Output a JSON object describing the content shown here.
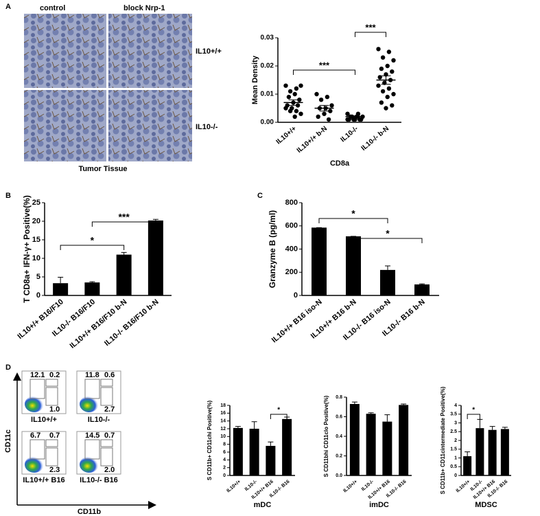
{
  "panel_labels": [
    "A",
    "B",
    "C",
    "D"
  ],
  "micrographs": {
    "columns": [
      "control",
      "block Nrp-1"
    ],
    "rows": [
      "IL10+/+",
      "IL10-/-"
    ],
    "caption": "Tumor Tissue"
  },
  "flow": {
    "y_axis": "CD11c",
    "x_axis": "CD11b",
    "plots": [
      {
        "label": "IL10+/+",
        "quadrants": [
          "12.1",
          "0.2",
          "1.0"
        ]
      },
      {
        "label": "IL10-/-",
        "quadrants": [
          "11.8",
          "0.6",
          "2.7"
        ]
      },
      {
        "label": "IL10+/+ B16",
        "quadrants": [
          "6.7",
          "0.7",
          "2.3"
        ]
      },
      {
        "label": "IL10-/- B16",
        "quadrants": [
          "14.5",
          "0.7",
          "2.0"
        ]
      }
    ]
  },
  "chart_data": [
    {
      "type": "dot",
      "y_label": "Mean Density",
      "x_label": "CD8a",
      "color": "#000000",
      "categories": [
        "IL10+/+",
        "IL10+/+ b-N",
        "IL10-/-",
        "IL10-/- b-N"
      ],
      "points": [
        [
          0.013,
          0.012,
          0.011,
          0.013,
          0.01,
          0.009,
          0.008,
          0.007,
          0.006,
          0.006,
          0.005,
          0.005,
          0.004,
          0.004,
          0.003,
          0.002
        ],
        [
          0.01,
          0.009,
          0.008,
          0.006,
          0.005,
          0.005,
          0.004,
          0.003,
          0.002,
          0.001
        ],
        [
          0.003,
          0.003,
          0.002,
          0.002,
          0.002,
          0.002,
          0.001,
          0.001,
          0.001,
          0.001,
          0.001,
          0.001
        ],
        [
          0.026,
          0.025,
          0.023,
          0.022,
          0.02,
          0.019,
          0.018,
          0.017,
          0.016,
          0.015,
          0.014,
          0.013,
          0.012,
          0.011,
          0.01,
          0.009,
          0.007,
          0.006,
          0.005
        ]
      ],
      "means": [
        0.007,
        0.005,
        0.002,
        0.015
      ],
      "errors": [
        0.001,
        0.001,
        0.0003,
        0.0015
      ],
      "ylim": [
        0,
        0.03
      ],
      "yticks": [
        {
          "value": 0,
          "label": "0.00"
        },
        {
          "value": 0.01,
          "label": "0.01"
        },
        {
          "value": 0.02,
          "label": "0.02"
        },
        {
          "value": 0.03,
          "label": "0.03"
        }
      ],
      "annotations": [
        "***",
        "***"
      ]
    },
    {
      "type": "bar",
      "y_label": "T CD8a+ IFN-γ+ Positive(%)",
      "color": "#000000",
      "categories": [
        "IL10+/+ B16/F10",
        "IL10-/- B16/F10",
        "IL10+/+ B16/F10 b-N",
        "IL10-/- B16/F10 b-N"
      ],
      "values": [
        3.3,
        3.5,
        11,
        20.2
      ],
      "errors": [
        1.6,
        0.2,
        0.6,
        0.3
      ],
      "ylim": [
        0,
        25
      ],
      "yticks": [
        0,
        5,
        10,
        15,
        20,
        25
      ],
      "annotations": [
        "*",
        "***"
      ]
    },
    {
      "type": "bar",
      "y_label": "Granzyme B (pg/ml)",
      "color": "#000000",
      "categories": [
        "IL10+/+ B16 iso-N",
        "IL10+/+ B16 b-N",
        "IL10-/- B16 iso-N",
        "IL10-/- B16 b-N"
      ],
      "values": [
        585,
        510,
        220,
        95
      ],
      "errors": [
        0,
        0,
        35,
        5
      ],
      "ylim": [
        0,
        800
      ],
      "yticks": [
        0,
        200,
        400,
        600,
        800
      ],
      "annotations": [
        "*",
        "*"
      ]
    },
    {
      "type": "bar",
      "y_label": "S CD11b+ CD11chi Positive(%)",
      "x_label": "mDC",
      "color": "#000000",
      "categories": [
        "IL10+/+",
        "IL10-/-",
        "IL10+/+ B16",
        "IL10-/- B16"
      ],
      "values": [
        12.2,
        12,
        7.6,
        14.5
      ],
      "errors": [
        0.4,
        1.8,
        1,
        0.5
      ],
      "ylim": [
        0,
        18
      ],
      "yticks": [
        0,
        2,
        4,
        6,
        8,
        10,
        12,
        14,
        16,
        18
      ],
      "annotations": [
        "*"
      ]
    },
    {
      "type": "bar",
      "y_label": "S CD11bhi CD11clo Positive(%)",
      "x_label": "imDC",
      "color": "#000000",
      "categories": [
        "IL10+/+",
        "IL10-/-",
        "IL10+/+ B16",
        "IL10-/- B16"
      ],
      "values": [
        0.73,
        0.63,
        0.55,
        0.72
      ],
      "errors": [
        0.02,
        0.01,
        0.07,
        0.01
      ],
      "ylim": [
        0,
        0.8
      ],
      "yticks": [
        {
          "value": 0,
          "label": "0.0"
        },
        0.2,
        0.4,
        0.6,
        0.8
      ],
      "annotations": []
    },
    {
      "type": "bar",
      "y_label": "S CD11b+ CD11cintermediate Positive(%)",
      "x_label": "MDSC",
      "color": "#000000",
      "categories": [
        "IL10+/+",
        "IL10-/-",
        "IL10+/+ B16",
        "IL10-/- B16"
      ],
      "values": [
        1.1,
        2.7,
        2.6,
        2.65
      ],
      "errors": [
        0.25,
        0.5,
        0.2,
        0.1
      ],
      "ylim": [
        0,
        4
      ],
      "yticks": [
        0,
        0.5,
        1,
        1.5,
        2,
        2.5,
        3,
        3.5,
        4
      ],
      "annotations": [
        "*"
      ]
    }
  ]
}
